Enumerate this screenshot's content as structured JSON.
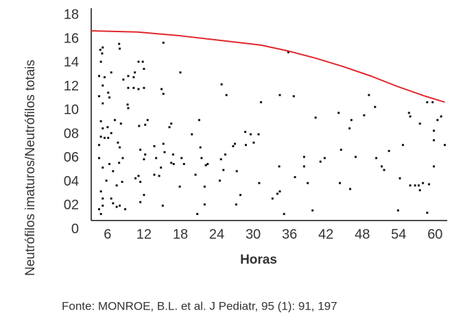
{
  "chart_data": {
    "type": "scatter",
    "ylabel": "Neutrófilos imaturos/Neutrófilos totais",
    "xlabel": "Horas",
    "source": "Fonte: MONROE, B.L. et al. J Pediatr, 95 (1): 91, 197",
    "xlim": [
      3.3,
      62
    ],
    "ylim": [
      0.75,
      18.6
    ],
    "xticks": [
      6,
      12,
      18,
      24,
      30,
      36,
      42,
      48,
      54,
      60
    ],
    "yticks": [
      0,
      {
        "value": 2,
        "label": "02"
      },
      {
        "value": 4,
        "label": "04"
      },
      {
        "value": 6,
        "label": "06"
      },
      {
        "value": 8,
        "label": "08"
      },
      10,
      12,
      14,
      16,
      18
    ],
    "grid": false,
    "series": [
      {
        "type": "scatter",
        "color": "#111111",
        "x": [
          4.8,
          5.1,
          5.2,
          4.9,
          4.6,
          5.2,
          5.5,
          4.6,
          5.2,
          6.1,
          6.3,
          6.6,
          4.9,
          5.2,
          4.9,
          5.5,
          4.6,
          6.1,
          6.6,
          6.0,
          7.2,
          8.2,
          4.6,
          5.2,
          5.8,
          6.3,
          6.9,
          7.5,
          7.9,
          4.9,
          5.2,
          5.2,
          4.6,
          4.9,
          6.6,
          6.9,
          7.5,
          8.0,
          8.4,
          7.7,
          8.0,
          8.5,
          8.9,
          7.9,
          8.0,
          8.6,
          9.4,
          9.4,
          9.3,
          9.4,
          10.3,
          10.5,
          10.3,
          11.1,
          11.8,
          12.0,
          11.1,
          12.0,
          11.2,
          12.2,
          12.6,
          11.4,
          10.6,
          11.1,
          11.4,
          12.0,
          12.2,
          11.4,
          12.0,
          13.7,
          14.0,
          13.7,
          14.5,
          15.2,
          14.9,
          15.2,
          15.2,
          15.4,
          14.8,
          15.1,
          16.5,
          16.2,
          16.8,
          16.5,
          16.9,
          17.9,
          18.0,
          18.2,
          18.6,
          19.9,
          20.5,
          21.1,
          21.3,
          21.5,
          22.2,
          22.5,
          22.0,
          22.0,
          20.8,
          24.5,
          24.8,
          25.6,
          24.7,
          25.4,
          25.1,
          26.7,
          27.0,
          27.3,
          27.2,
          27.9,
          28.7,
          28.8,
          29.6,
          30.1,
          30.9,
          31.3,
          31.0,
          33.2,
          34.0,
          34.4,
          34.3,
          34.4,
          35.1,
          35.8,
          36.7,
          36.9,
          38.4,
          38.4,
          39.0,
          39.8,
          40.3,
          41.1,
          41.8,
          44.1,
          44.5,
          44.3,
          45.9,
          46.2,
          46.0,
          46.9,
          48.3,
          49.1,
          50.1,
          50.3,
          51.2,
          51.6,
          52.4,
          53.9,
          54.2,
          54.7,
          55.7,
          55.9,
          55.9,
          56.7,
          57.5,
          57.5,
          57.3,
          58.0,
          58.7,
          59.6,
          59.0,
          58.7,
          59.8,
          59.8,
          60.4,
          61.0,
          61.6,
          59.8
        ],
        "values": [
          15.1,
          14.8,
          15.3,
          14.1,
          12.9,
          12.1,
          12.8,
          11.2,
          10.6,
          11.5,
          11.1,
          13.2,
          9.1,
          8.5,
          7.8,
          7.7,
          7.1,
          7.7,
          8.1,
          8.6,
          9.2,
          8.9,
          6.0,
          5.2,
          4.1,
          5.5,
          4.9,
          3.7,
          5.6,
          3.2,
          2.6,
          2.0,
          1.7,
          1.3,
          2.6,
          2.2,
          1.9,
          2.0,
          4.0,
          7.3,
          6.9,
          6.0,
          1.7,
          15.6,
          15.2,
          12.6,
          12.9,
          11.9,
          10.5,
          10.2,
          12.8,
          13.2,
          11.9,
          14.1,
          14.1,
          13.5,
          11.8,
          11.9,
          8.7,
          8.8,
          9.2,
          6.7,
          4.3,
          4.5,
          4.0,
          5.9,
          6.3,
          2.3,
          2.9,
          7.0,
          6.0,
          4.6,
          4.5,
          15.7,
          11.8,
          11.4,
          7.2,
          6.5,
          5.2,
          2.0,
          8.9,
          8.6,
          6.3,
          5.6,
          5.5,
          3.6,
          13.2,
          6.0,
          5.5,
          8.0,
          4.6,
          9.2,
          6.9,
          6.0,
          5.4,
          5.5,
          3.6,
          2.1,
          1.3,
          4.1,
          12.2,
          11.3,
          5.9,
          6.3,
          5.0,
          7.0,
          7.2,
          4.9,
          2.1,
          2.9,
          8.2,
          7.1,
          8.0,
          7.3,
          8.0,
          10.7,
          3.9,
          2.6,
          3.0,
          3.2,
          5.3,
          11.3,
          1.3,
          14.9,
          11.2,
          4.4,
          6.1,
          5.3,
          3.9,
          1.6,
          9.4,
          5.7,
          6.0,
          9.8,
          6.7,
          3.9,
          8.5,
          9.2,
          3.4,
          6.1,
          9.6,
          11.3,
          10.3,
          6.0,
          5.3,
          5.0,
          6.6,
          1.6,
          4.3,
          7.1,
          9.8,
          9.5,
          3.7,
          3.7,
          8.9,
          3.3,
          3.7,
          3.9,
          10.7,
          10.7,
          3.8,
          1.4,
          8.3,
          5.3,
          9.2,
          9.5,
          7.1,
          7.5
        ]
      },
      {
        "type": "line",
        "color": "#e0262b",
        "x": [
          3.3,
          10.9,
          17.7,
          24.5,
          31.3,
          35.8,
          40.3,
          44.8,
          49.4,
          53.9,
          58.4,
          61.6
        ],
        "values": [
          16.7,
          16.6,
          16.3,
          15.9,
          15.5,
          15.0,
          14.4,
          13.7,
          12.9,
          12.0,
          11.2,
          10.7
        ]
      }
    ]
  }
}
